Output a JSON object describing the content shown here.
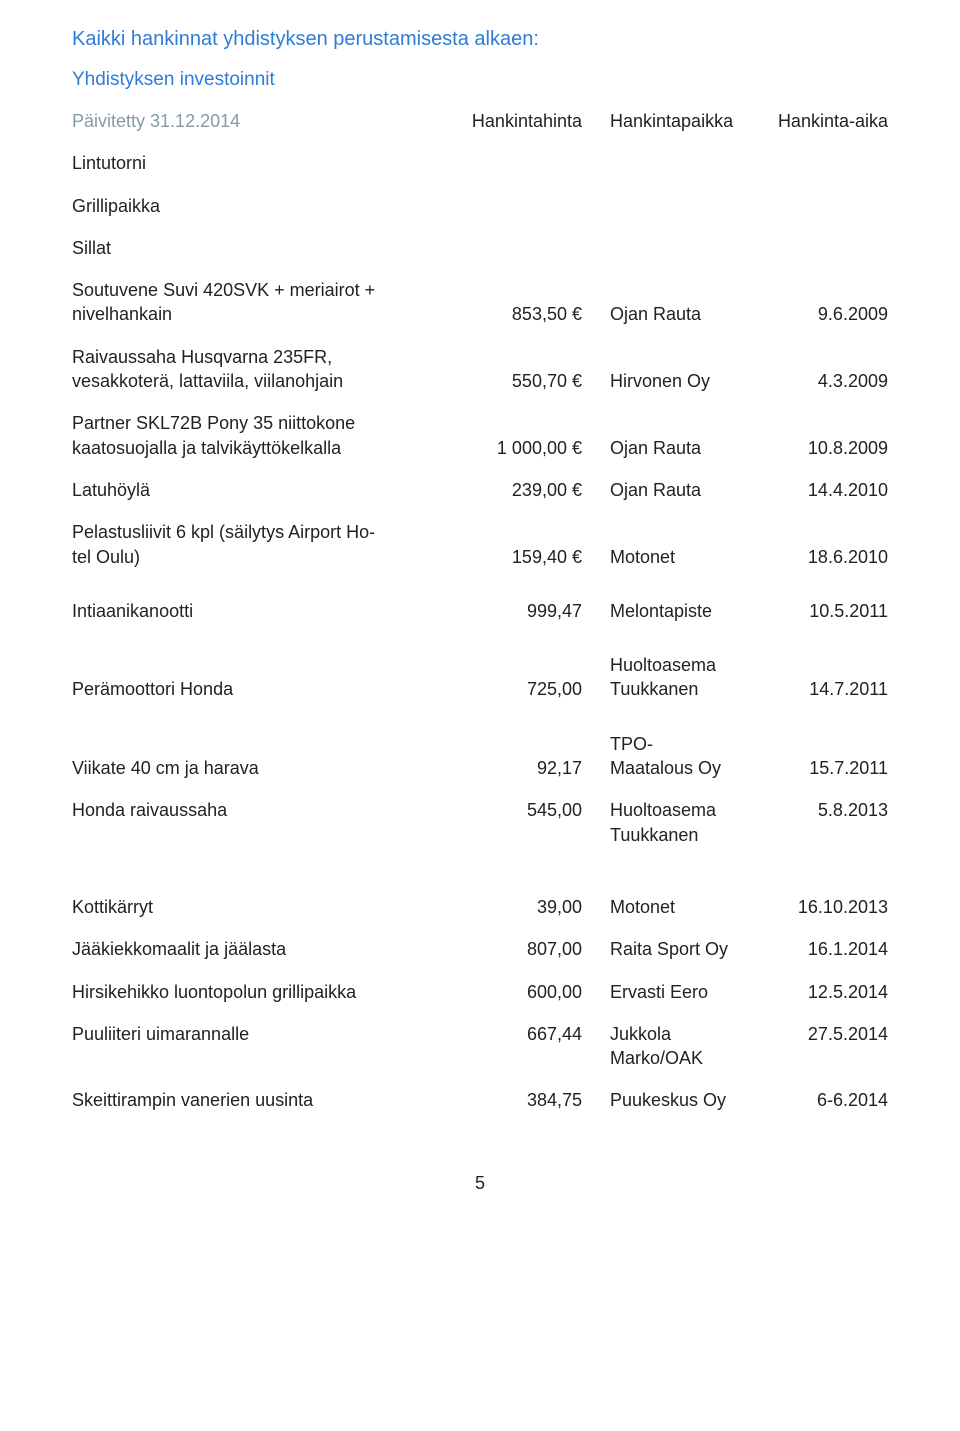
{
  "heading1": "Kaikki hankinnat yhdistyksen perustamisesta alkaen:",
  "heading2": "Yhdistyksen investoinnit",
  "updated_prefix": "Päivitetty 31.12.2014",
  "hdr_paikka": "Hankintapaikka",
  "hdr_hinta": "Hankintahinta",
  "hdr_aika": "Hankinta-aika",
  "items": {
    "lintutorni": "Lintutorni",
    "grillipaikka": "Grillipaikka",
    "sillat": "Sillat",
    "soutuvene_l1": "Soutuvene Suvi 420SVK + meriairot +",
    "soutuvene_l2": "nivelhankain",
    "soutuvene_price": "853,50 €",
    "soutuvene_shop": "Ojan Rauta",
    "soutuvene_date": "9.6.2009",
    "raivaus_l1": "Raivaussaha Husqvarna 235FR,",
    "raivaus_l2": "vesakkoterä, lattaviila, viilanohjain",
    "raivaus_price": "550,70 €",
    "raivaus_shop": "Hirvonen Oy",
    "raivaus_date": "4.3.2009",
    "partner_l1": "Partner SKL72B   Pony 35  niittokone",
    "partner_l2": "kaatosuojalla ja talvikäyttökelkalla",
    "partner_price": "1 000,00 €",
    "partner_shop": "Ojan Rauta",
    "partner_date": "10.8.2009",
    "latu_name": "Latuhöylä",
    "latu_price": "239,00 €",
    "latu_shop": "Ojan Rauta",
    "latu_date": "14.4.2010",
    "pela_l1": "Pelastusliivit 6 kpl (säilytys Airport Ho-",
    "pela_l2": "tel Oulu)",
    "pela_price": "159,40 €",
    "pela_shop": "Motonet",
    "pela_date": "18.6.2010",
    "intiaani_name": "Intiaanikanootti",
    "intiaani_price": "999,47",
    "intiaani_shop": "Melontapiste",
    "intiaani_date": "10.5.2011",
    "pera_name": "Perämoottori   Honda",
    "pera_price": "725,00",
    "pera_shop_l1": "Huoltoasema",
    "pera_shop_l2": "Tuukkanen",
    "pera_date": "14.7.2011",
    "viikate_name": "Viikate 40 cm ja harava",
    "viikate_price": "92,17",
    "viikate_shop_l1": "TPO-",
    "viikate_shop_l2": "Maatalous Oy",
    "viikate_date": "15.7.2011",
    "hondar_name": "Honda raivaussaha",
    "hondar_price": "545,00",
    "hondar_shop_l1": "Huoltoasema",
    "hondar_shop_l2": "Tuukkanen",
    "hondar_date": "5.8.2013",
    "kotti_name": "Kottikärryt",
    "kotti_price": "39,00",
    "kotti_shop": "Motonet",
    "kotti_date": "16.10.2013",
    "jaa_name": "Jääkiekkomaalit ja jäälasta",
    "jaa_price": "807,00",
    "jaa_shop": "Raita Sport Oy",
    "jaa_date": "16.1.2014",
    "hirsi_name": "Hirsikehikko luontopolun grillipaikka",
    "hirsi_price": "600,00",
    "hirsi_shop": "Ervasti Eero",
    "hirsi_date": "12.5.2014",
    "puuli_name": "Puuliiteri uimarannalle",
    "puuli_price": "667,44",
    "puuli_shop": "Jukkola Marko/OAK",
    "puuli_date": "27.5.2014",
    "skeitti_name": "Skeittirampin vanerien uusinta",
    "skeitti_price": "384,75",
    "skeitti_shop": "Puukeskus Oy",
    "skeitti_date": "6-6.2014"
  },
  "page_number": "5"
}
